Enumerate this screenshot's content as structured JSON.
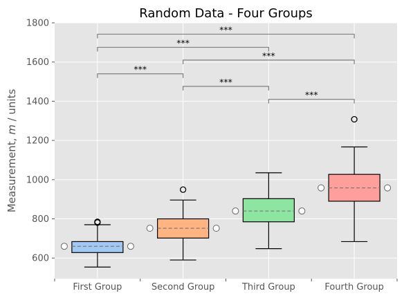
{
  "chart_data": {
    "type": "box",
    "title": "Random Data - Four Groups",
    "ylabel_prefix": "Measurement, ",
    "ylabel_var": "m",
    "ylabel_suffix": " / units",
    "xlabel": "",
    "ylim": [
      495,
      1800
    ],
    "yticks": [
      600,
      800,
      1000,
      1200,
      1400,
      1600,
      1800
    ],
    "grid": true,
    "categories": [
      "First Group",
      "Second Group",
      "Third Group",
      "Fourth Group"
    ],
    "boxes": [
      {
        "whisker_low": 554,
        "q1": 628,
        "median": 660,
        "mean": 660,
        "q3": 684,
        "whisker_high": 770,
        "outliers": [
          781,
          785
        ],
        "color": "#a1c9f4"
      },
      {
        "whisker_low": 590,
        "q1": 702,
        "median": 752,
        "mean": 752,
        "q3": 800,
        "whisker_high": 896,
        "outliers": [
          949
        ],
        "color": "#ffb482"
      },
      {
        "whisker_low": 648,
        "q1": 785,
        "median": 840,
        "mean": 840,
        "q3": 903,
        "whisker_high": 1035,
        "outliers": [],
        "color": "#8de5a1"
      },
      {
        "whisker_low": 684,
        "q1": 890,
        "median": 958,
        "mean": 958,
        "q3": 1027,
        "whisker_high": 1167,
        "outliers": [
          1308
        ],
        "color": "#ff9f9b"
      }
    ],
    "significance": [
      {
        "from": 0,
        "to": 1,
        "y": 1540,
        "label": "***"
      },
      {
        "from": 1,
        "to": 2,
        "y": 1476,
        "label": "***"
      },
      {
        "from": 2,
        "to": 3,
        "y": 1410,
        "label": "***"
      },
      {
        "from": 0,
        "to": 2,
        "y": 1675,
        "label": "***"
      },
      {
        "from": 1,
        "to": 3,
        "y": 1610,
        "label": "***"
      },
      {
        "from": 0,
        "to": 3,
        "y": 1742,
        "label": "***"
      }
    ]
  }
}
